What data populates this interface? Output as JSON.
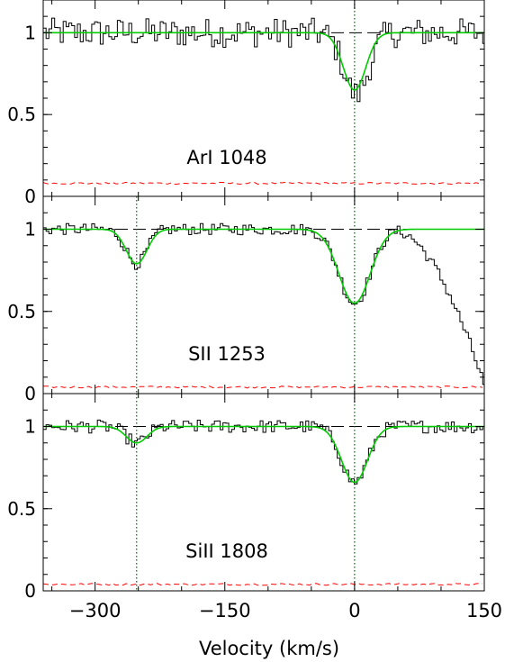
{
  "chart_data": {
    "type": "line",
    "xlabel": "Velocity (km/s)",
    "xlim": [
      -360,
      150
    ],
    "x_ticks": [
      -300,
      -150,
      0,
      150
    ],
    "x_tick_labels": [
      "−300",
      "−150",
      "0",
      "150"
    ],
    "component_velocities": [
      -252,
      0
    ],
    "colors": {
      "data": "#000000",
      "fit": "#00cc00",
      "error": "#ff0000",
      "continuum": "#000000",
      "components": "#006600"
    },
    "panels": [
      {
        "label": "ArI 1048",
        "ylim": [
          0,
          1.2
        ],
        "y_ticks": [
          0,
          0.5,
          1
        ],
        "y_tick_labels": [
          "0",
          "0.5",
          "1"
        ],
        "show_component_line": [
          false,
          true
        ],
        "error_level": 0.08,
        "fit_components": [
          {
            "center": 0,
            "depth": 0.35,
            "sigma": 13
          }
        ],
        "absorption_features": [
          {
            "center": 2,
            "depth": 0.38,
            "sigma": 14
          }
        ],
        "noise_amplitude": 0.09
      },
      {
        "label": "SII 1253",
        "ylim": [
          0,
          1.2
        ],
        "y_ticks": [
          0,
          0.5,
          1
        ],
        "y_tick_labels": [
          "0",
          "0.5",
          "1"
        ],
        "show_component_line": [
          true,
          true
        ],
        "error_level": 0.04,
        "fit_components": [
          {
            "center": -252,
            "depth": 0.21,
            "sigma": 12
          },
          {
            "center": 0,
            "depth": 0.45,
            "sigma": 18
          }
        ],
        "absorption_features": [
          {
            "center": -252,
            "depth": 0.21,
            "sigma": 12
          },
          {
            "center": 0,
            "depth": 0.45,
            "sigma": 18
          }
        ],
        "blend": {
          "start": 45,
          "end": 150,
          "end_value": 0.05
        },
        "noise_amplitude": 0.035
      },
      {
        "label": "SiII 1808",
        "ylim": [
          0,
          1.2
        ],
        "y_ticks": [
          0,
          0.5,
          1
        ],
        "y_tick_labels": [
          "0",
          "0.5",
          "1"
        ],
        "show_component_line": [
          true,
          true
        ],
        "error_level": 0.04,
        "fit_components": [
          {
            "center": -252,
            "depth": 0.1,
            "sigma": 12
          },
          {
            "center": 0,
            "depth": 0.34,
            "sigma": 15
          }
        ],
        "absorption_features": [
          {
            "center": -252,
            "depth": 0.1,
            "sigma": 12
          },
          {
            "center": 0,
            "depth": 0.34,
            "sigma": 15
          }
        ],
        "noise_amplitude": 0.04
      }
    ]
  }
}
